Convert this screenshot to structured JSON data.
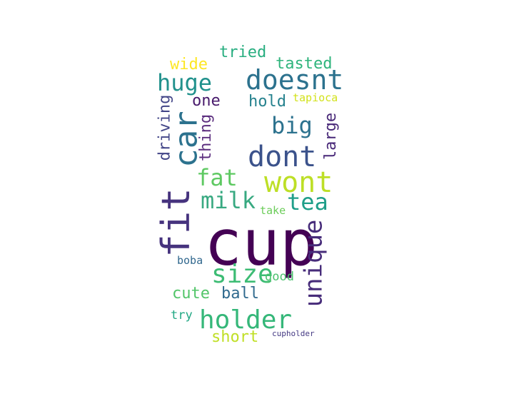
{
  "words": [
    {
      "key": "cup",
      "text": "cup",
      "color": "#440154"
    },
    {
      "key": "fit",
      "text": "fit",
      "color": "#46337e"
    },
    {
      "key": "car",
      "text": "car",
      "color": "#2c728e"
    },
    {
      "key": "doesnt",
      "text": "doesnt",
      "color": "#2c728e"
    },
    {
      "key": "dont",
      "text": "dont",
      "color": "#3b528b"
    },
    {
      "key": "wont",
      "text": "wont",
      "color": "#bddf26"
    },
    {
      "key": "holder",
      "text": "holder",
      "color": "#35b779"
    },
    {
      "key": "size",
      "text": "size",
      "color": "#3dbc74"
    },
    {
      "key": "unique",
      "text": "unique",
      "color": "#472c7a"
    },
    {
      "key": "huge",
      "text": "huge",
      "color": "#21918c"
    },
    {
      "key": "big",
      "text": "big",
      "color": "#2c728e"
    },
    {
      "key": "fat",
      "text": "fat",
      "color": "#5ec962"
    },
    {
      "key": "milk",
      "text": "milk",
      "color": "#38a981"
    },
    {
      "key": "tea",
      "text": "tea",
      "color": "#1f9e89"
    },
    {
      "key": "tried",
      "text": "tried",
      "color": "#28ae80"
    },
    {
      "key": "tasted",
      "text": "tasted",
      "color": "#2fb47c"
    },
    {
      "key": "wide",
      "text": "wide",
      "color": "#fde725"
    },
    {
      "key": "one",
      "text": "one",
      "color": "#481a6c"
    },
    {
      "key": "hold",
      "text": "hold",
      "color": "#26828e"
    },
    {
      "key": "tapioca",
      "text": "tapioca",
      "color": "#d2e21b"
    },
    {
      "key": "driving",
      "text": "driving",
      "color": "#414487"
    },
    {
      "key": "thing",
      "text": "thing",
      "color": "#5b2d7e"
    },
    {
      "key": "large",
      "text": "large",
      "color": "#482878"
    },
    {
      "key": "take",
      "text": "take",
      "color": "#6ccd5a"
    },
    {
      "key": "boba",
      "text": "boba",
      "color": "#31688e"
    },
    {
      "key": "good",
      "text": "good",
      "color": "#4ac16d"
    },
    {
      "key": "cute",
      "text": "cute",
      "color": "#52c569"
    },
    {
      "key": "ball",
      "text": "ball",
      "color": "#306a8e"
    },
    {
      "key": "try",
      "text": "try",
      "color": "#22a884"
    },
    {
      "key": "short",
      "text": "short",
      "color": "#c0df25"
    },
    {
      "key": "cupholder",
      "text": "cupholder",
      "color": "#443983"
    }
  ]
}
